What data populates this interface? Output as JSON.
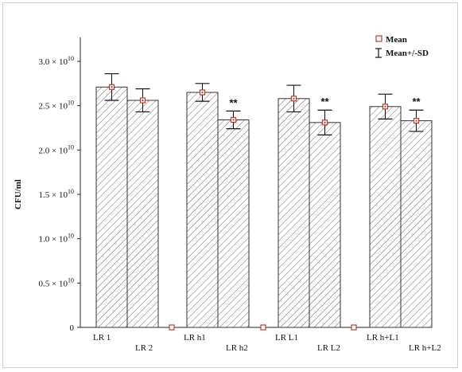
{
  "chart_data": {
    "type": "bar",
    "ylabel": "CFU/ml",
    "ylim_mantissa": [
      0,
      3.0
    ],
    "y_exponent": "10",
    "y_ticks": [
      {
        "mantissa": "0",
        "value": 0
      },
      {
        "mantissa": "0.5 × 10",
        "value": 0.5
      },
      {
        "mantissa": "1.0 × 10",
        "value": 1.0
      },
      {
        "mantissa": "1.5 × 10",
        "value": 1.5
      },
      {
        "mantissa": "2.0 × 10",
        "value": 2.0
      },
      {
        "mantissa": "2.5 × 10",
        "value": 2.5
      },
      {
        "mantissa": "3.0 × 10",
        "value": 3.0
      }
    ],
    "groups": [
      {
        "bars": [
          {
            "label": "LR 1",
            "mean": 2.71,
            "sd": 0.15,
            "sig": ""
          },
          {
            "label": "LR 2",
            "mean": 2.56,
            "sd": 0.13,
            "sig": ""
          }
        ],
        "gap_zero": 0
      },
      {
        "bars": [
          {
            "label": "LR h1",
            "mean": 2.65,
            "sd": 0.1,
            "sig": ""
          },
          {
            "label": "LR h2",
            "mean": 2.34,
            "sd": 0.1,
            "sig": "**"
          }
        ],
        "gap_zero": 0
      },
      {
        "bars": [
          {
            "label": "LR L1",
            "mean": 2.58,
            "sd": 0.15,
            "sig": ""
          },
          {
            "label": "LR L2",
            "mean": 2.31,
            "sd": 0.14,
            "sig": "**"
          }
        ],
        "gap_zero": 0
      },
      {
        "bars": [
          {
            "label": "LR h+L1",
            "mean": 2.49,
            "sd": 0.14,
            "sig": ""
          },
          {
            "label": "LR h+L2",
            "mean": 2.33,
            "sd": 0.12,
            "sig": "**"
          }
        ]
      }
    ],
    "legend": {
      "position": "top-right",
      "mean_label": "Mean",
      "sd_label": "Mean+/-SD"
    },
    "colors": {
      "bar_outline": "#333333",
      "hatch": "#555555",
      "marker": "#c0392b"
    }
  }
}
